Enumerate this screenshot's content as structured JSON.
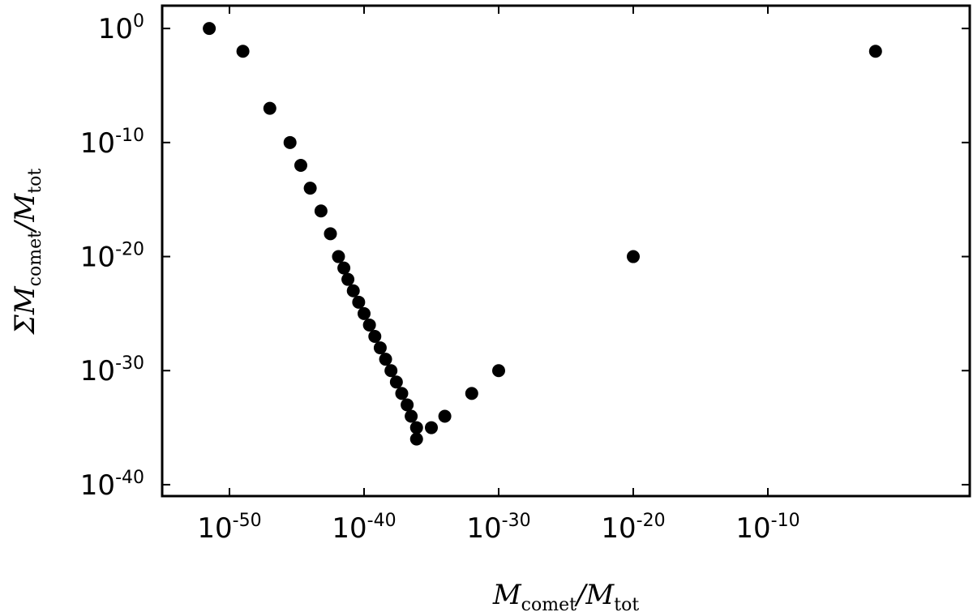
{
  "chart_data": {
    "type": "scatter",
    "xscale": "log",
    "yscale": "log",
    "x_exponent_range": [
      -55,
      5
    ],
    "y_exponent_range": [
      -41,
      2
    ],
    "x_ticks": [
      {
        "base": "10",
        "exp": "-50",
        "value_exp": -50
      },
      {
        "base": "10",
        "exp": "-40",
        "value_exp": -40
      },
      {
        "base": "10",
        "exp": "-30",
        "value_exp": -30
      },
      {
        "base": "10",
        "exp": "-20",
        "value_exp": -20
      },
      {
        "base": "10",
        "exp": "-10",
        "value_exp": -10
      }
    ],
    "y_ticks": [
      {
        "base": "10",
        "exp": "0",
        "value_exp": 0
      },
      {
        "base": "10",
        "exp": "-10",
        "value_exp": -10
      },
      {
        "base": "10",
        "exp": "-20",
        "value_exp": -20
      },
      {
        "base": "10",
        "exp": "-30",
        "value_exp": -30
      },
      {
        "base": "10",
        "exp": "-40",
        "value_exp": -40
      }
    ],
    "xlabel": {
      "main": "M",
      "sub": "comet",
      "sep": "/",
      "main2": "M",
      "sub2": "tot"
    },
    "ylabel": {
      "prefix": "Σ",
      "main": "M",
      "sub": "comet",
      "sep": "/",
      "main2": "M",
      "sub2": "tot"
    },
    "grid": false,
    "marker_color": "#000000",
    "points": [
      {
        "x": "1e-51.5",
        "y": "1e0"
      },
      {
        "x": "1e-49",
        "y": "1e-2"
      },
      {
        "x": "1e-47",
        "y": "1e-7"
      },
      {
        "x": "1e-45.5",
        "y": "1e-10"
      },
      {
        "x": "1e-44.7",
        "y": "1e-12"
      },
      {
        "x": "1e-44",
        "y": "1e-14"
      },
      {
        "x": "1e-43.2",
        "y": "1e-16"
      },
      {
        "x": "1e-42.5",
        "y": "1e-18"
      },
      {
        "x": "1e-41.9",
        "y": "1e-20"
      },
      {
        "x": "1e-41.5",
        "y": "1e-21"
      },
      {
        "x": "1e-41.2",
        "y": "1e-22"
      },
      {
        "x": "1e-40.8",
        "y": "1e-23"
      },
      {
        "x": "1e-40.4",
        "y": "1e-24"
      },
      {
        "x": "1e-40",
        "y": "1e-25"
      },
      {
        "x": "1e-39.6",
        "y": "1e-26"
      },
      {
        "x": "1e-39.2",
        "y": "1e-27"
      },
      {
        "x": "1e-38.8",
        "y": "1e-28"
      },
      {
        "x": "1e-38.4",
        "y": "1e-29"
      },
      {
        "x": "1e-38",
        "y": "1e-30"
      },
      {
        "x": "1e-37.6",
        "y": "1e-31"
      },
      {
        "x": "1e-37.2",
        "y": "1e-32"
      },
      {
        "x": "1e-36.8",
        "y": "1e-33"
      },
      {
        "x": "1e-36.5",
        "y": "1e-34"
      },
      {
        "x": "1e-36.1",
        "y": "1e-35"
      },
      {
        "x": "1e-36.1",
        "y": "1e-36"
      },
      {
        "x": "1e-35",
        "y": "1e-35"
      },
      {
        "x": "1e-34",
        "y": "1e-34"
      },
      {
        "x": "1e-32",
        "y": "1e-32"
      },
      {
        "x": "1e-30",
        "y": "1e-30"
      },
      {
        "x": "1e-20",
        "y": "1e-20"
      },
      {
        "x": "1e-2",
        "y": "1e-2"
      }
    ]
  }
}
